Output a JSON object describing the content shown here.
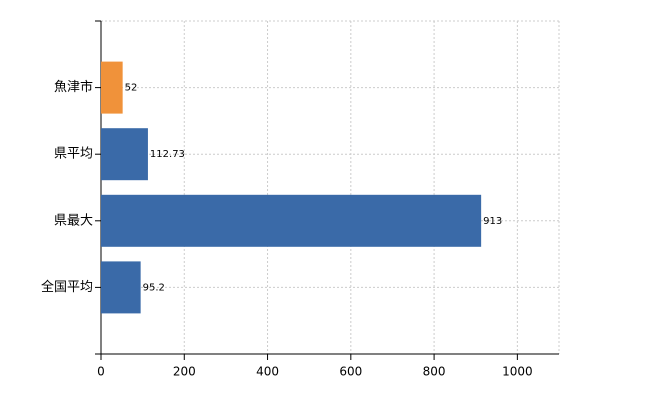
{
  "chart_data": {
    "type": "bar",
    "orientation": "horizontal",
    "categories": [
      "魚津市",
      "県平均",
      "県最大",
      "全国平均"
    ],
    "values": [
      52,
      112.73,
      913,
      95.2
    ],
    "colors": [
      "#f0923a",
      "#3a6aa8",
      "#3a6aa8",
      "#3a6aa8"
    ],
    "xlim": [
      0,
      1100
    ],
    "xticks": [
      0,
      200,
      400,
      600,
      800,
      1000
    ],
    "grid": true
  }
}
